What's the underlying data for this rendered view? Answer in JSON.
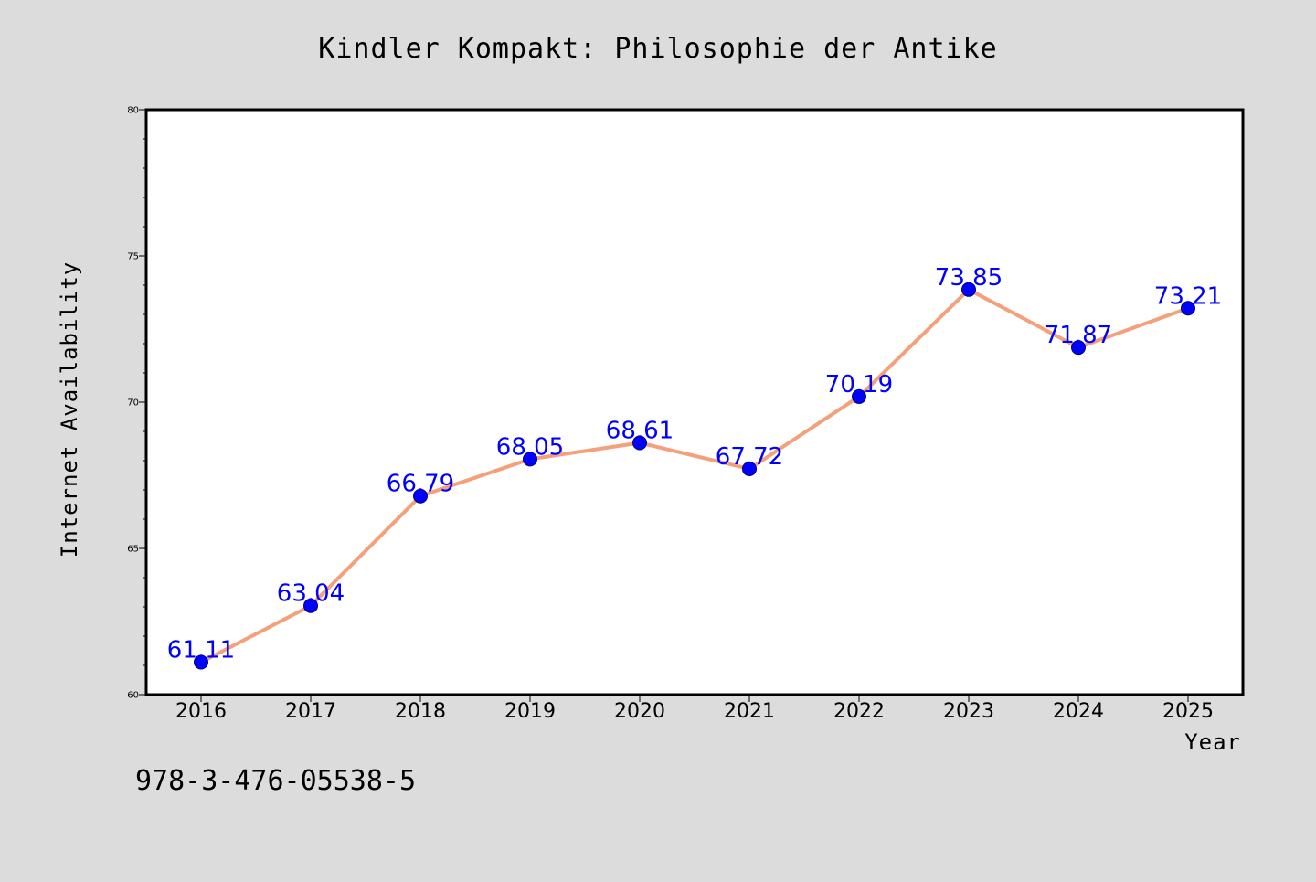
{
  "chart_data": {
    "type": "line",
    "title": "Kindler Kompakt: Philosophie der Antike",
    "xlabel": "Year",
    "ylabel": "Internet Availability",
    "categories": [
      "2016",
      "2017",
      "2018",
      "2019",
      "2020",
      "2021",
      "2022",
      "2023",
      "2024",
      "2025"
    ],
    "series": [
      {
        "values": [
          61.11,
          63.04,
          66.79,
          68.05,
          68.61,
          67.72,
          70.19,
          73.85,
          71.87,
          73.21
        ],
        "labels": [
          "61.11",
          "63.04",
          "66.79",
          "68.05",
          "68.61",
          "67.72",
          "70.19",
          "73.85",
          "71.87",
          "73.21"
        ],
        "line_color": "#f4a07a",
        "marker_color": "#0000ff",
        "label_color": "#0000ff"
      }
    ],
    "ylim": [
      60,
      80
    ],
    "y_ticks": [
      "60",
      "65",
      "70",
      "75",
      "80"
    ],
    "grid": false,
    "legend": "none"
  },
  "footer": {
    "isbn": "978-3-476-05538-5"
  },
  "colors": {
    "background": "#dcdcdc",
    "plot_background": "#ffffff",
    "axis": "#000000"
  }
}
